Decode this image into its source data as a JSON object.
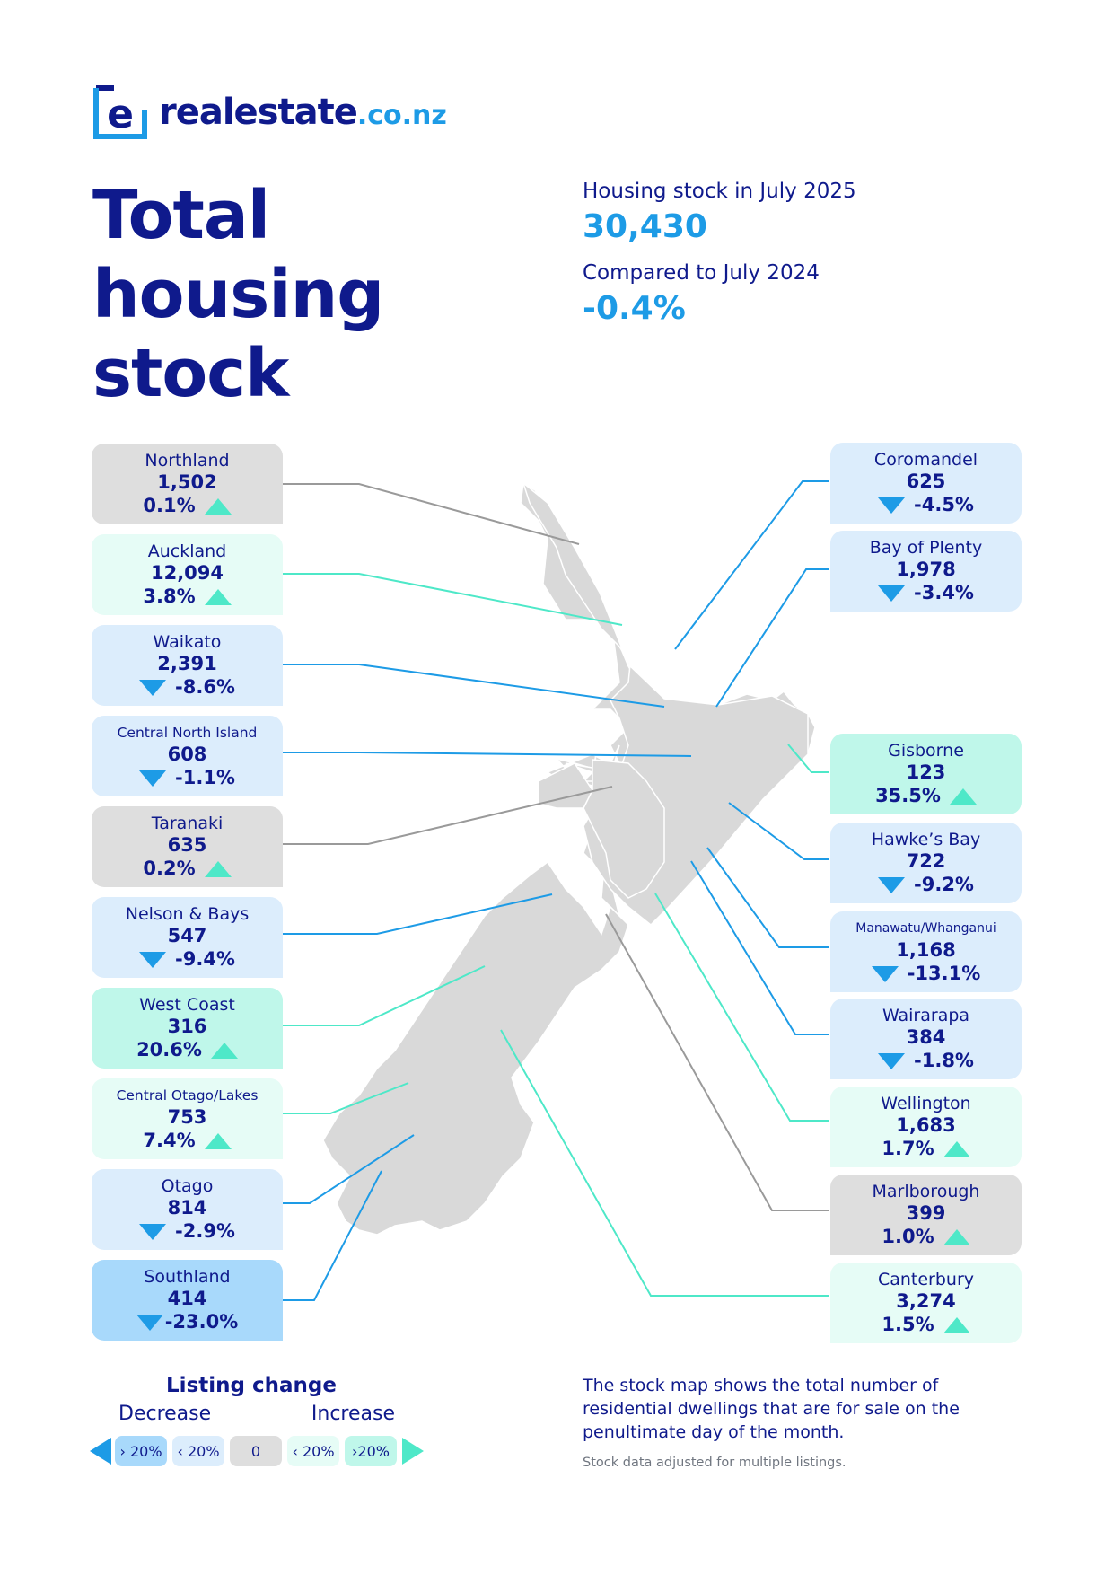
{
  "brand": {
    "name": "realestate",
    "tld": ".co.nz",
    "logo_glyph": "e"
  },
  "title_lines": [
    "Total",
    "housing",
    "stock"
  ],
  "summary": {
    "stock_label": "Housing stock in July 2025",
    "stock_value": "30,430",
    "compare_label": "Compared to July 2024",
    "compare_value": "-0.4%"
  },
  "colors": {
    "navy": "#0f1a8c",
    "blue": "#1d9be6",
    "teal": "#4ee8c8",
    "grey_card": "#dedede",
    "map_land": "#d9d9d9",
    "decrease_gt20": "#a8d9fb",
    "decrease_lt20": "#dcedfc",
    "zero": "#dedede",
    "increase_lt20": "#e6fcf6",
    "increase_gt20": "#bff7ea"
  },
  "regions_left": [
    {
      "name": "Northland",
      "count": "1,502",
      "change": "0.1%",
      "direction": "up",
      "band": "zero"
    },
    {
      "name": "Auckland",
      "count": "12,094",
      "change": "3.8%",
      "direction": "up",
      "band": "increase_lt20"
    },
    {
      "name": "Waikato",
      "count": "2,391",
      "change": "-8.6%",
      "direction": "down",
      "band": "decrease_lt20"
    },
    {
      "name": "Central North Island",
      "count": "608",
      "change": "-1.1%",
      "direction": "down",
      "band": "decrease_lt20",
      "small": true
    },
    {
      "name": "Taranaki",
      "count": "635",
      "change": "0.2%",
      "direction": "up",
      "band": "zero"
    },
    {
      "name": "Nelson & Bays",
      "count": "547",
      "change": "-9.4%",
      "direction": "down",
      "band": "decrease_lt20"
    },
    {
      "name": "West Coast",
      "count": "316",
      "change": "20.6%",
      "direction": "up",
      "band": "increase_gt20"
    },
    {
      "name": "Central Otago/Lakes",
      "count": "753",
      "change": "7.4%",
      "direction": "up",
      "band": "increase_lt20",
      "small": true
    },
    {
      "name": "Otago",
      "count": "814",
      "change": "-2.9%",
      "direction": "down",
      "band": "decrease_lt20"
    },
    {
      "name": "Southland",
      "count": "414",
      "change": "-23.0%",
      "direction": "down",
      "band": "decrease_gt20"
    }
  ],
  "regions_right": [
    {
      "name": "Coromandel",
      "count": "625",
      "change": "-4.5%",
      "direction": "down",
      "band": "decrease_lt20"
    },
    {
      "name": "Bay of Plenty",
      "count": "1,978",
      "change": "-3.4%",
      "direction": "down",
      "band": "decrease_lt20"
    },
    {
      "name": "Gisborne",
      "count": "123",
      "change": "35.5%",
      "direction": "up",
      "band": "increase_gt20"
    },
    {
      "name": "Hawke’s Bay",
      "count": "722",
      "change": "-9.2%",
      "direction": "down",
      "band": "decrease_lt20"
    },
    {
      "name": "Manawatu/Whanganui",
      "count": "1,168",
      "change": "-13.1%",
      "direction": "down",
      "band": "decrease_lt20",
      "small": true
    },
    {
      "name": "Wairarapa",
      "count": "384",
      "change": "-1.8%",
      "direction": "down",
      "band": "decrease_lt20"
    },
    {
      "name": "Wellington",
      "count": "1,683",
      "change": "1.7%",
      "direction": "up",
      "band": "increase_lt20"
    },
    {
      "name": "Marlborough",
      "count": "399",
      "change": "1.0%",
      "direction": "up",
      "band": "zero"
    },
    {
      "name": "Canterbury",
      "count": "3,274",
      "change": "1.5%",
      "direction": "up",
      "band": "increase_lt20"
    }
  ],
  "legend": {
    "title": "Listing change",
    "decrease": "Decrease",
    "increase": "Increase",
    "chips": [
      "› 20%",
      "‹ 20%",
      "0",
      "‹ 20%",
      "›20%"
    ]
  },
  "note": "The stock map shows the total number of residential dwellings that are for sale on the penultimate day of the month.",
  "footnote": "Stock data adjusted for multiple listings."
}
